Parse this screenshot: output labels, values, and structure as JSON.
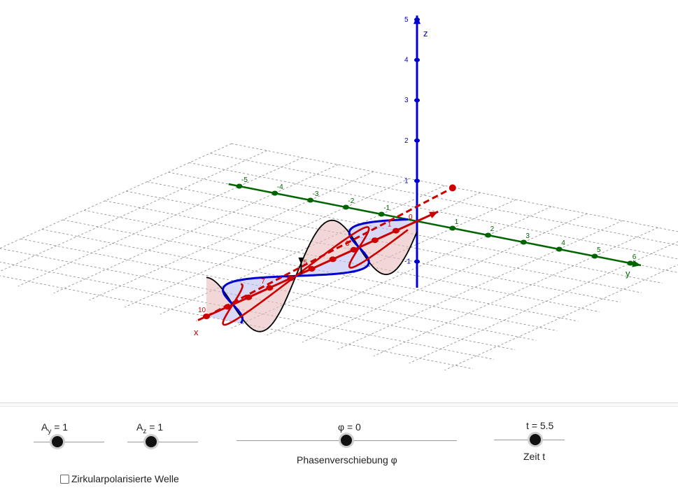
{
  "view3d": {
    "axes": {
      "x": {
        "label": "x",
        "color": "#cc0000",
        "ticks": [
          1,
          2,
          3,
          4,
          5,
          6,
          7,
          8,
          9,
          10
        ],
        "tick_labels": [
          "1",
          "3",
          "5",
          "7",
          "10"
        ]
      },
      "y": {
        "label": "y",
        "color": "#006400",
        "ticks": [
          -5,
          -4,
          -3,
          -2,
          -1,
          1,
          2,
          3,
          4,
          5,
          6
        ],
        "tick_labels": [
          "-5",
          "-4",
          "-3",
          "-2",
          "-1",
          "1",
          "2",
          "3",
          "4",
          "5",
          "6"
        ]
      },
      "z": {
        "label": "z",
        "color": "#0000cc",
        "ticks": [
          -1,
          1,
          2,
          3,
          4,
          5
        ],
        "tick_labels": [
          "-1",
          "1",
          "2",
          "3",
          "4",
          "5"
        ]
      },
      "origin_label": "0"
    },
    "colors": {
      "wave_z": "#000000",
      "wave_y": "#0000cc",
      "resultant": "#cc0000",
      "fill_z": "#e8bcbc",
      "fill_y": "#b8b8f0",
      "grid": "#888888"
    }
  },
  "controls": {
    "slider_ay": {
      "prefix": "A",
      "sub": "y",
      "value_text": " = 1",
      "value": 1
    },
    "slider_az": {
      "prefix": "A",
      "sub": "z",
      "value_text": " = 1",
      "value": 1
    },
    "slider_phi": {
      "label": "φ = 0",
      "caption": "Phasenverschiebung φ",
      "value": 0
    },
    "slider_t": {
      "label": "t = 5.5",
      "caption": "Zeit t",
      "value": 5.5
    },
    "checkbox_circular": {
      "label": "Zirkularpolarisierte Welle",
      "checked": false
    }
  }
}
